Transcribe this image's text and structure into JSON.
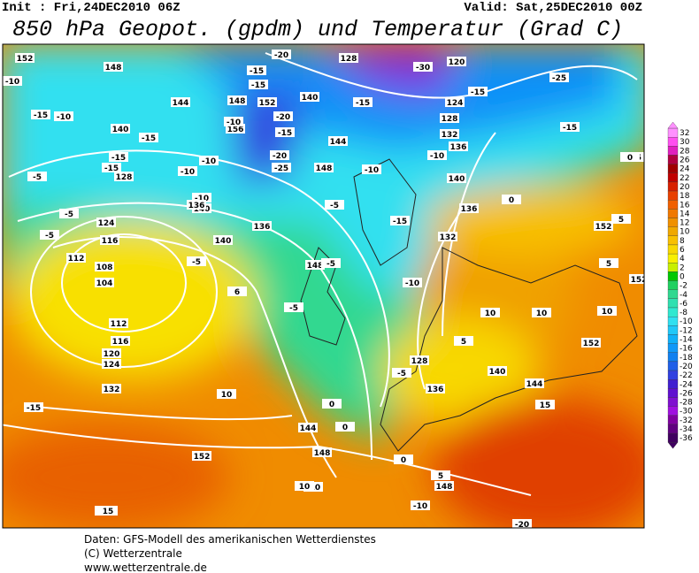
{
  "header": {
    "init": "Init : Fri,24DEC2010 06Z",
    "valid": "Valid: Sat,25DEC2010 00Z",
    "title": "850 hPa Geopot. (gpdm) und Temperatur (Grad C)"
  },
  "map": {
    "labels": [
      "152",
      "148",
      "-10",
      "-10",
      "-15",
      "-20",
      "128",
      "-30",
      "120",
      "-25",
      "144",
      "-15",
      "148",
      "152",
      "140",
      "-15",
      "-20",
      "-15",
      "124",
      "-15",
      "140",
      "-15",
      "156",
      "-10",
      "-15",
      "144",
      "-20",
      "128",
      "132",
      "-15",
      "136",
      "-10",
      "-15",
      "-5",
      "140",
      "-25",
      "-10",
      "-15",
      "-10",
      "148",
      "-10",
      "140",
      "136",
      "-15",
      "0",
      "-5",
      "132",
      "0",
      "128",
      "124",
      "-10",
      "152",
      "136",
      "-5",
      "-5",
      "-5",
      "116",
      "140",
      "136",
      "-5",
      "148",
      "5",
      "5",
      "112",
      "108",
      "104",
      "6",
      "-5",
      "-5",
      "10",
      "10",
      "152",
      "112",
      "116",
      "-10",
      "5",
      "10",
      "120",
      "124",
      "128",
      "140",
      "144",
      "152",
      "132",
      "-5",
      "136",
      "10",
      "0",
      "15",
      "0",
      "144",
      "148",
      "-15",
      "152",
      "0",
      "5",
      "148",
      "-10",
      "10",
      "-10",
      "10",
      "15",
      "-20"
    ]
  },
  "legend": {
    "steps": [
      {
        "label": 32,
        "color": "#ff90ff"
      },
      {
        "label": 30,
        "color": "#ff50f0"
      },
      {
        "label": 28,
        "color": "#e020c0"
      },
      {
        "label": 26,
        "color": "#b00040"
      },
      {
        "label": 24,
        "color": "#a00000"
      },
      {
        "label": 22,
        "color": "#c00000"
      },
      {
        "label": 20,
        "color": "#d82000"
      },
      {
        "label": 18,
        "color": "#e84000"
      },
      {
        "label": 16,
        "color": "#f06000"
      },
      {
        "label": 14,
        "color": "#f07800"
      },
      {
        "label": 12,
        "color": "#f09000"
      },
      {
        "label": 10,
        "color": "#f0a800"
      },
      {
        "label": 8,
        "color": "#f8c000"
      },
      {
        "label": 6,
        "color": "#f8d800"
      },
      {
        "label": 4,
        "color": "#f8f000"
      },
      {
        "label": 2,
        "color": "#c8f000"
      },
      {
        "label": 0,
        "color": "#00c800"
      },
      {
        "label": -2,
        "color": "#20d060"
      },
      {
        "label": -4,
        "color": "#30d890"
      },
      {
        "label": -6,
        "color": "#30e0b0"
      },
      {
        "label": -8,
        "color": "#30e8d0"
      },
      {
        "label": -10,
        "color": "#30e0f0"
      },
      {
        "label": -12,
        "color": "#20c8f8"
      },
      {
        "label": -14,
        "color": "#10b0f8"
      },
      {
        "label": -16,
        "color": "#1098f8"
      },
      {
        "label": -18,
        "color": "#1080f0"
      },
      {
        "label": -20,
        "color": "#2060e8"
      },
      {
        "label": -22,
        "color": "#3040e0"
      },
      {
        "label": -24,
        "color": "#4020d0"
      },
      {
        "label": -26,
        "color": "#6010d0"
      },
      {
        "label": -28,
        "color": "#8010d0"
      },
      {
        "label": -30,
        "color": "#a010e0"
      },
      {
        "label": -32,
        "color": "#8000a0"
      },
      {
        "label": -34,
        "color": "#600080"
      },
      {
        "label": -36,
        "color": "#400060"
      }
    ]
  },
  "footer": {
    "line1": "Daten: GFS-Modell des amerikanischen Wetterdienstes",
    "line2": "(C) Wetterzentrale",
    "line3": "www.wetterzentrale.de"
  }
}
